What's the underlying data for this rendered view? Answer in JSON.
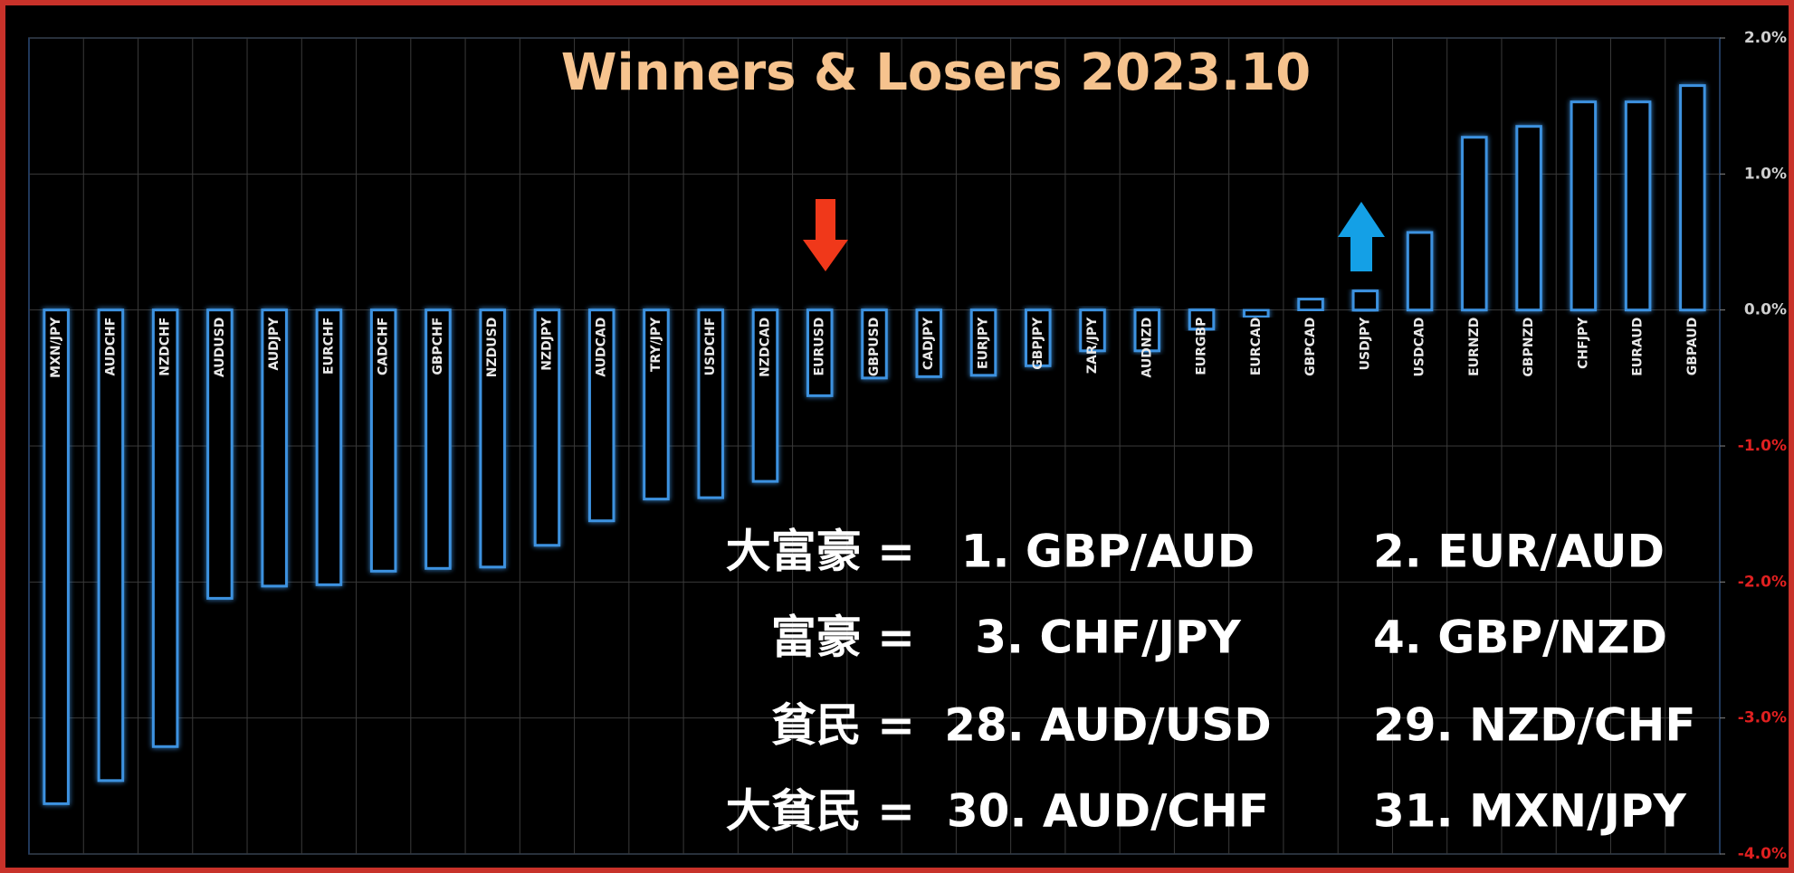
{
  "chart_data": {
    "type": "bar",
    "title": "Winners & Losers  2023.10",
    "categories": [
      "MXN/JPY",
      "AUDCHF",
      "NZDCHF",
      "AUDUSD",
      "AUDJPY",
      "EURCHF",
      "CADCHF",
      "GBPCHF",
      "NZDUSD",
      "NZDJPY",
      "AUDCAD",
      "TRY/JPY",
      "USDCHF",
      "NZDCAD",
      "EURUSD",
      "GBPUSD",
      "CADJPY",
      "EURJPY",
      "GBPJPY",
      "ZAR/JPY",
      "AUDNZD",
      "EURGBP",
      "EURCAD",
      "GBPCAD",
      "USDJPY",
      "USDCAD",
      "EURNZD",
      "GBPNZD",
      "CHFJPY",
      "EURAUD",
      "GBPAUD"
    ],
    "values": [
      -3.63,
      -3.46,
      -3.21,
      -2.12,
      -2.03,
      -2.02,
      -1.92,
      -1.9,
      -1.89,
      -1.73,
      -1.55,
      -1.39,
      -1.38,
      -1.26,
      -0.63,
      -0.5,
      -0.49,
      -0.48,
      -0.41,
      -0.3,
      -0.3,
      -0.14,
      -0.05,
      0.08,
      0.14,
      0.57,
      1.27,
      1.35,
      1.53,
      1.53,
      1.65
    ],
    "color": "#3d92e0",
    "ylim": [
      -4,
      2
    ],
    "yticks": [
      {
        "value": 2,
        "label": "2.0%"
      },
      {
        "value": 1,
        "label": "1.0%"
      },
      {
        "value": 0,
        "label": "0.0%"
      },
      {
        "value": -1,
        "label": "-1.0%"
      },
      {
        "value": -2,
        "label": "-2.0%"
      },
      {
        "value": -3,
        "label": "-3.0%"
      },
      {
        "value": -4,
        "label": "-4.0%"
      }
    ],
    "grid": true,
    "annotations": [
      [
        "大富豪 =",
        "1. GBP/AUD",
        "2. EUR/AUD"
      ],
      [
        "富豪 =",
        "3. CHF/JPY",
        "4. GBP/NZD"
      ],
      [
        "貧民 =",
        "28. AUD/USD",
        "29. NZD/CHF"
      ],
      [
        "大貧民 =",
        "30. AUD/CHF",
        "31. MXN/JPY"
      ]
    ]
  }
}
